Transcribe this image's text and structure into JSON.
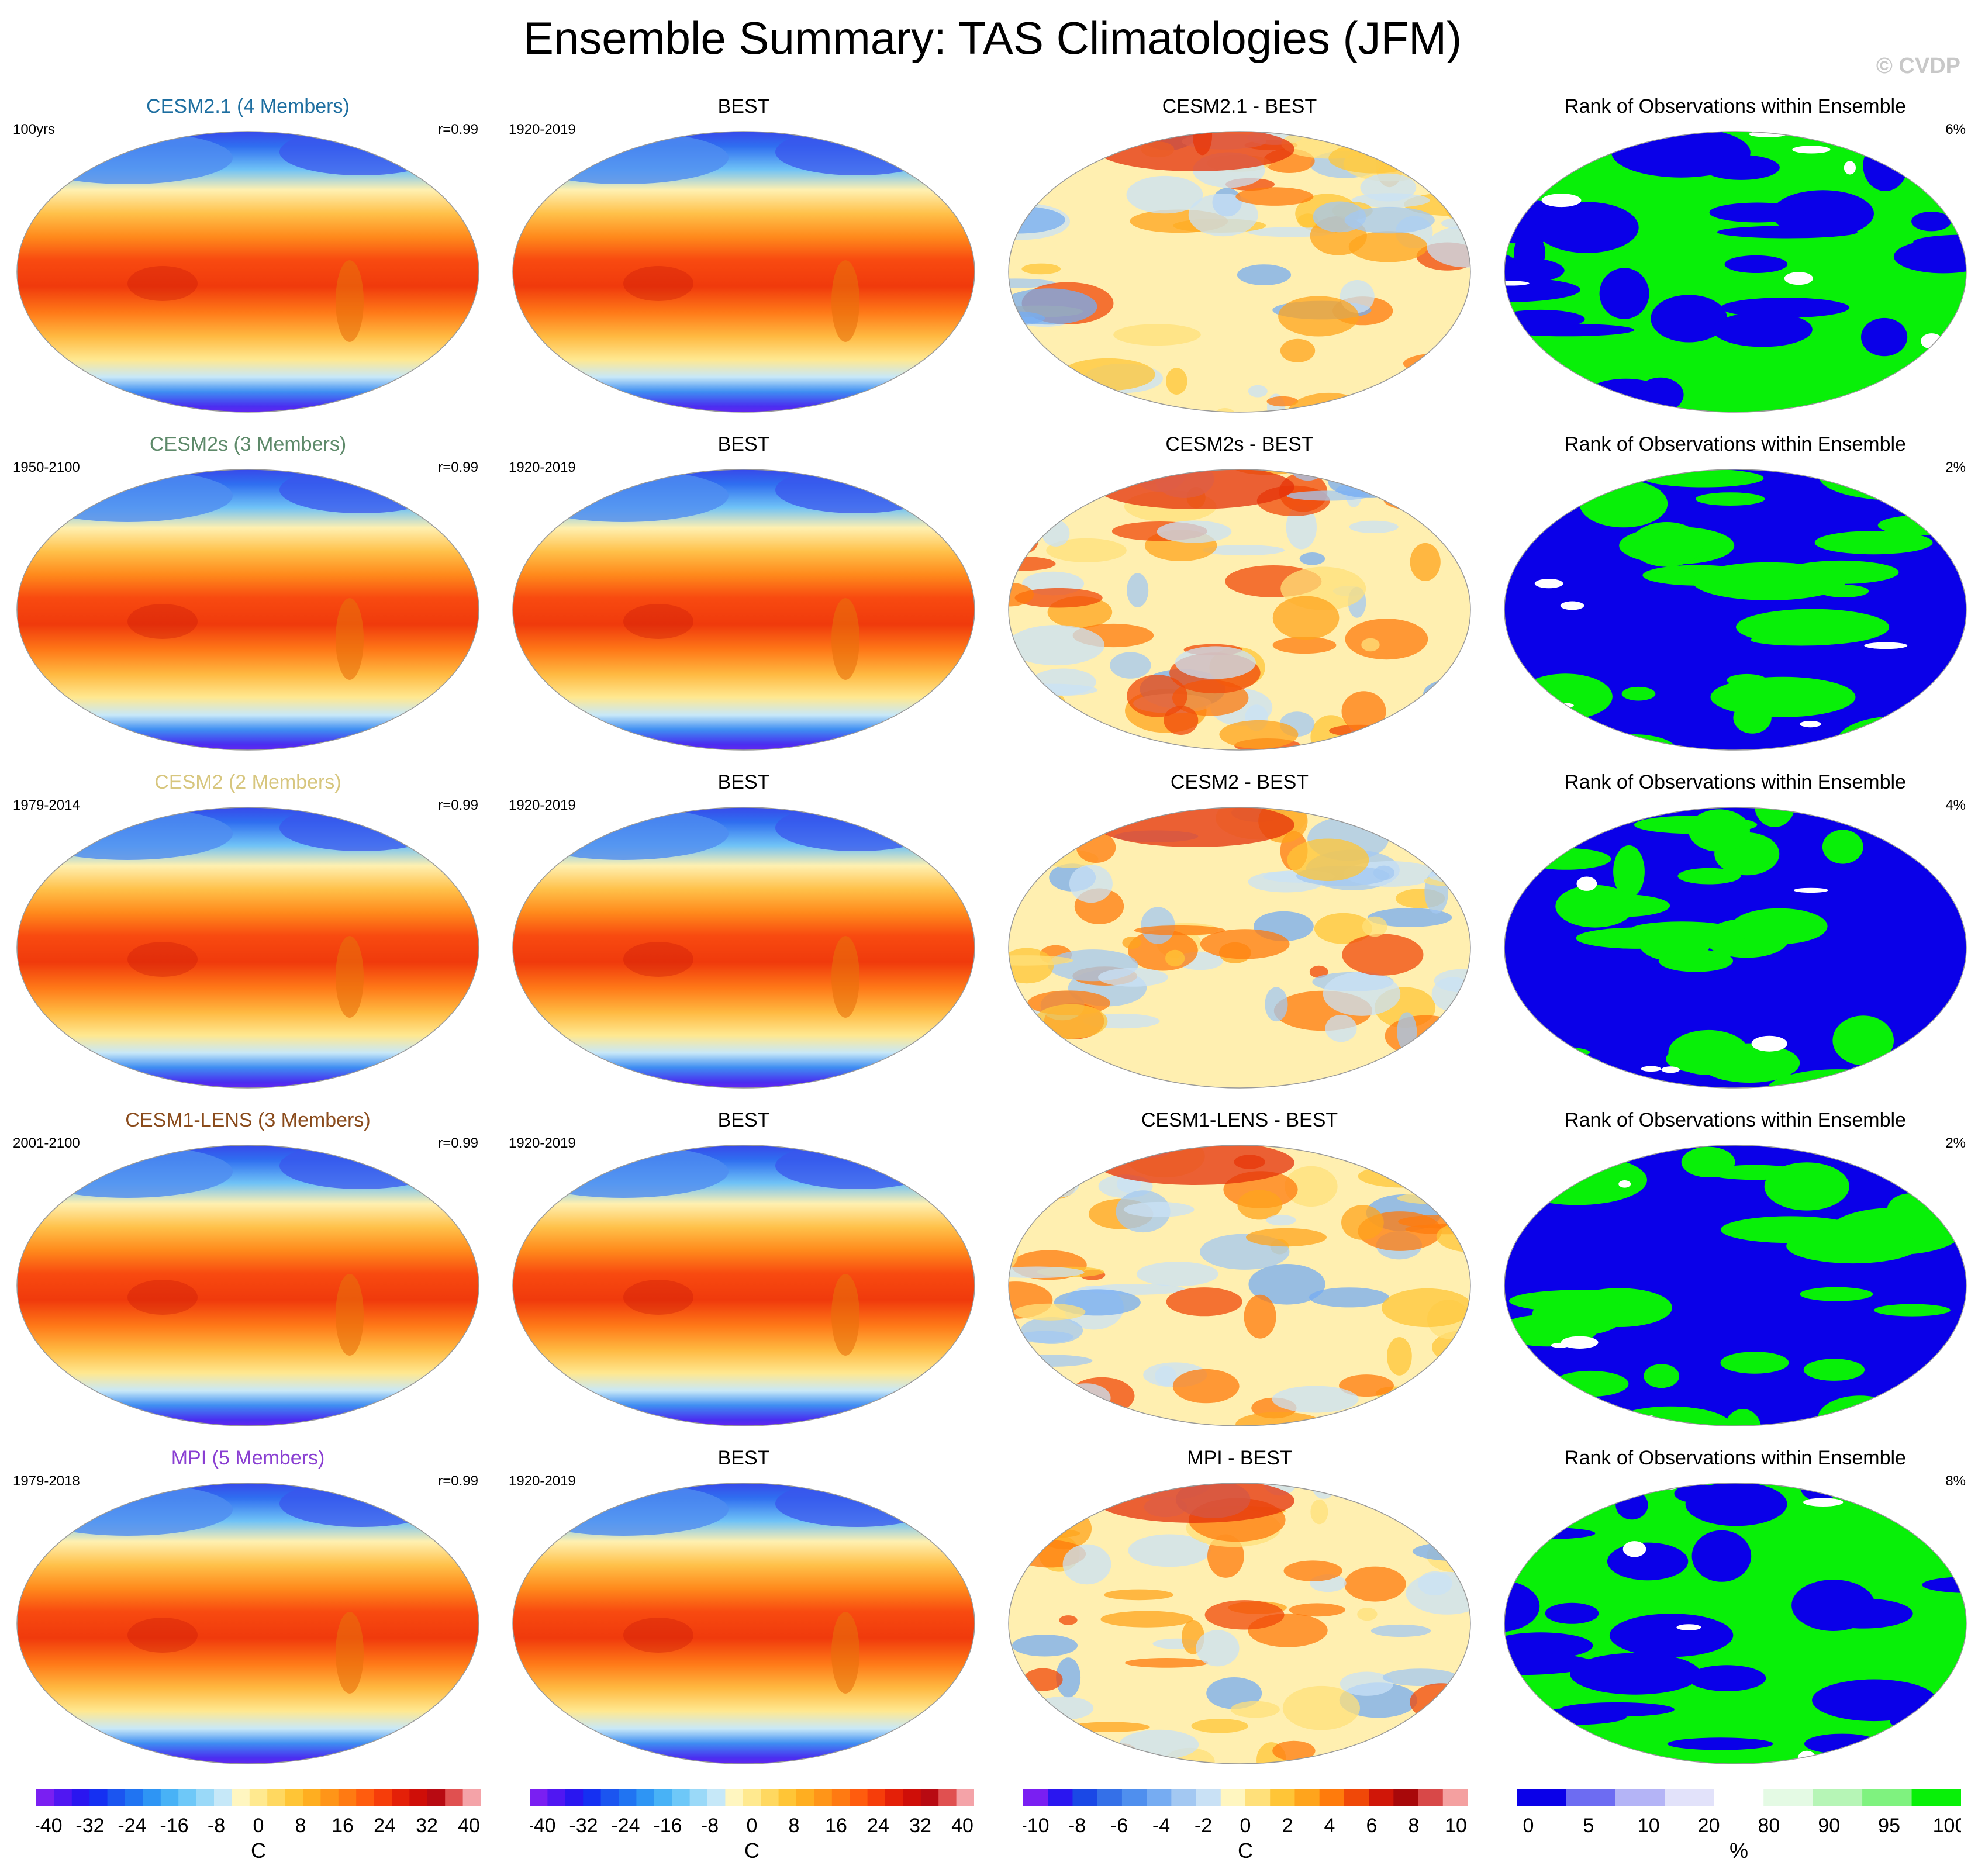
{
  "title": "Ensemble Summary: TAS Climatologies (JFM)",
  "watermark": "© CVDP",
  "rows": [
    {
      "model": "CESM2.1 (4 Members)",
      "model_color": "#1d6ea0",
      "years": "100yrs",
      "r": "r=0.99",
      "obs": "BEST",
      "obs_years": "1920-2019",
      "diff": "CESM2.1 - BEST",
      "rank": "Rank of Observations within Ensemble",
      "pct": "6%"
    },
    {
      "model": "CESM2s (3 Members)",
      "model_color": "#5e8a6a",
      "years": "1950-2100",
      "r": "r=0.99",
      "obs": "BEST",
      "obs_years": "1920-2019",
      "diff": "CESM2s - BEST",
      "rank": "Rank of Observations within Ensemble",
      "pct": "2%"
    },
    {
      "model": "CESM2 (2 Members)",
      "model_color": "#d7c67e",
      "years": "1979-2014",
      "r": "r=0.99",
      "obs": "BEST",
      "obs_years": "1920-2019",
      "diff": "CESM2 - BEST",
      "rank": "Rank of Observations within Ensemble",
      "pct": "4%"
    },
    {
      "model": "CESM1-LENS (3 Members)",
      "model_color": "#8a4b1c",
      "years": "2001-2100",
      "r": "r=0.99",
      "obs": "BEST",
      "obs_years": "1920-2019",
      "diff": "CESM1-LENS - BEST",
      "rank": "Rank of Observations within Ensemble",
      "pct": "2%"
    },
    {
      "model": "MPI (5 Members)",
      "model_color": "#8a3fd2",
      "years": "1979-2018",
      "r": "r=0.99",
      "obs": "BEST",
      "obs_years": "1920-2019",
      "diff": "MPI - BEST",
      "rank": "Rank of Observations within Ensemble",
      "pct": "8%"
    }
  ],
  "colorbars": [
    {
      "unit": "C",
      "labels": [
        "-40",
        "-32",
        "-24",
        "-16",
        "-8",
        "0",
        "8",
        "16",
        "24",
        "32",
        "40"
      ],
      "colors": [
        "#7a1ff2",
        "#5017f2",
        "#2a16f0",
        "#1530f2",
        "#1b55f0",
        "#2074f2",
        "#2e95f4",
        "#48b2f6",
        "#6ec8f8",
        "#9ad9f8",
        "#c6e8f8",
        "#fff6c0",
        "#ffe98f",
        "#ffd860",
        "#ffc536",
        "#ffae20",
        "#ff9518",
        "#ff7a12",
        "#ff5c0e",
        "#f63d0a",
        "#e42008",
        "#cf0e08",
        "#b80a12",
        "#e05050",
        "#f4a3a8"
      ]
    },
    {
      "unit": "C",
      "labels": [
        "-40",
        "-32",
        "-24",
        "-16",
        "-8",
        "0",
        "8",
        "16",
        "24",
        "32",
        "40"
      ],
      "colors": [
        "#7a1ff2",
        "#5017f2",
        "#2a16f0",
        "#1530f2",
        "#1b55f0",
        "#2074f2",
        "#2e95f4",
        "#48b2f6",
        "#6ec8f8",
        "#9ad9f8",
        "#c6e8f8",
        "#fff6c0",
        "#ffe98f",
        "#ffd860",
        "#ffc536",
        "#ffae20",
        "#ff9518",
        "#ff7a12",
        "#ff5c0e",
        "#f63d0a",
        "#e42008",
        "#cf0e08",
        "#b80a12",
        "#e05050",
        "#f4a3a8"
      ]
    },
    {
      "unit": "C",
      "labels": [
        "-10",
        "-8",
        "-6",
        "-4",
        "-2",
        "0",
        "2",
        "4",
        "6",
        "8",
        "10"
      ],
      "colors": [
        "#7a1ff2",
        "#2a16f0",
        "#1a48e6",
        "#3470e8",
        "#4f8fee",
        "#76acf2",
        "#a3c8f2",
        "#c9e1f5",
        "#fff6c0",
        "#ffe07a",
        "#ffc537",
        "#ffa41c",
        "#ff7b0c",
        "#f04808",
        "#d01608",
        "#a8080a",
        "#d84848",
        "#f4a0a0"
      ]
    },
    {
      "unit": "%",
      "labels": [
        "0",
        "5",
        "10",
        "20",
        "80",
        "90",
        "95",
        "100"
      ],
      "colors": [
        "#0a00e8",
        "#6d6cf2",
        "#b4b4f6",
        "#e2e2fa",
        "#ffffff",
        "#e4fae4",
        "#b6f5b6",
        "#7ff27f",
        "#08f008"
      ]
    }
  ]
}
